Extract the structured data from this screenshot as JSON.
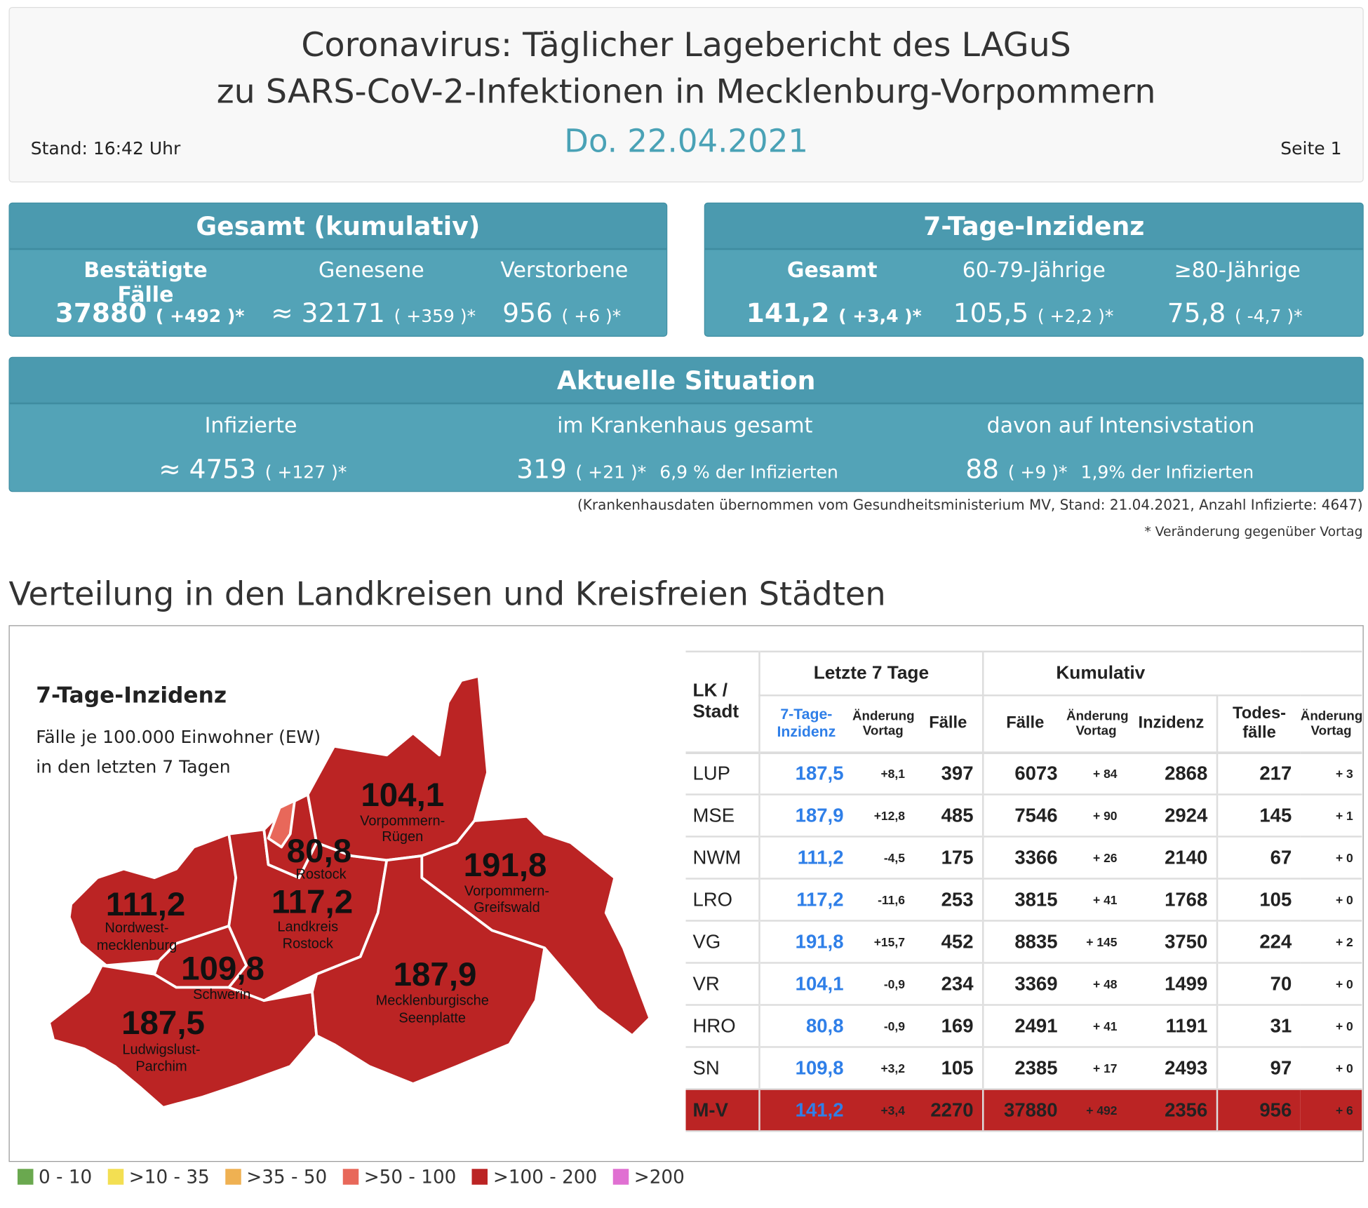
{
  "header": {
    "title_line1": "Coronavirus: Täglicher Lagebericht des LAGuS",
    "title_line2": "zu SARS-CoV-2-Infektionen in Mecklenburg-Vorpommern",
    "stand": "Stand: 16:42 Uhr",
    "date": "Do. 22.04.2021",
    "page": "Seite 1"
  },
  "gesamt": {
    "title": "Gesamt (kumulativ)",
    "items": [
      {
        "label": "Bestätigte Fälle",
        "value": "37880",
        "change": "( +492 )*"
      },
      {
        "label": "Genesene",
        "value": "≈ 32171",
        "change": "( +359 )*"
      },
      {
        "label": "Verstorbene",
        "value": "956",
        "change": "( +6 )*"
      }
    ]
  },
  "inzidenz": {
    "title": "7-Tage-Inzidenz",
    "items": [
      {
        "label": "Gesamt",
        "value": "141,2",
        "change": "( +3,4 )*"
      },
      {
        "label": "60-79-Jährige",
        "value": "105,5",
        "change": "( +2,2 )*"
      },
      {
        "label": "≥80-Jährige",
        "value": "75,8",
        "change": "( -4,7 )*"
      }
    ]
  },
  "aktuell": {
    "title": "Aktuelle Situation",
    "items": [
      {
        "label": "Infizierte",
        "value": "≈ 4753",
        "change": "( +127 )*",
        "extra": ""
      },
      {
        "label": "im Krankenhaus gesamt",
        "value": "319",
        "change": "( +21 )*",
        "extra": "6,9 % der Infizierten"
      },
      {
        "label": "davon auf Intensivstation",
        "value": "88",
        "change": "( +9 )*",
        "extra": "1,9% der Infizierten"
      }
    ]
  },
  "notes": {
    "hospital": "(Krankenhausdaten übernommen vom Gesundheitsministerium MV, Stand: 21.04.2021, Anzahl Infizierte: 4647)",
    "asterisk": "* Veränderung gegenüber Vortag"
  },
  "section_title": "Verteilung in den Landkreisen und Kreisfreien Städten",
  "map": {
    "title": "7-Tage-Inzidenz",
    "subtitle1": "Fälle je 100.000 Einwohner (EW)",
    "subtitle2": "in den letzten 7 Tagen",
    "regions": [
      {
        "value": "104,1",
        "name1": "Vorpommern-",
        "name2": "Rügen"
      },
      {
        "value": "80,8",
        "name1": "Rostock",
        "name2": ""
      },
      {
        "value": "117,2",
        "name1": "Landkreis",
        "name2": "Rostock"
      },
      {
        "value": "191,8",
        "name1": "Vorpommern-",
        "name2": "Greifswald"
      },
      {
        "value": "111,2",
        "name1": "Nordwest-",
        "name2": "mecklenburg"
      },
      {
        "value": "109,8",
        "name1": "Schwerin",
        "name2": ""
      },
      {
        "value": "187,9",
        "name1": "Mecklenburgische",
        "name2": "Seenplatte"
      },
      {
        "value": "187,5",
        "name1": "Ludwigslust-",
        "name2": "Parchim"
      }
    ],
    "colors": {
      "fill": "#bb2424",
      "rostock_patch": "#e8685a"
    }
  },
  "table": {
    "group_headers": [
      "Letzte 7 Tage",
      "Kumulativ"
    ],
    "lk_header": "LK / Stadt",
    "sub_headers": {
      "inz": "7-Tage-Inzidenz",
      "chg": "Änderung Vortag",
      "faelle": "Fälle",
      "kfaelle": "Fälle",
      "kchg": "Änderung Vortag",
      "kinz": "Inzidenz",
      "tod": "Todes-fälle",
      "tchg": "Änderung Vortag"
    },
    "rows": [
      [
        "LUP",
        "187,5",
        "+8,1",
        "397",
        "6073",
        "+ 84",
        "2868",
        "217",
        "+ 3"
      ],
      [
        "MSE",
        "187,9",
        "+12,8",
        "485",
        "7546",
        "+ 90",
        "2924",
        "145",
        "+ 1"
      ],
      [
        "NWM",
        "111,2",
        "-4,5",
        "175",
        "3366",
        "+ 26",
        "2140",
        "67",
        "+ 0"
      ],
      [
        "LRO",
        "117,2",
        "-11,6",
        "253",
        "3815",
        "+ 41",
        "1768",
        "105",
        "+ 0"
      ],
      [
        "VG",
        "191,8",
        "+15,7",
        "452",
        "8835",
        "+ 145",
        "3750",
        "224",
        "+ 2"
      ],
      [
        "VR",
        "104,1",
        "-0,9",
        "234",
        "3369",
        "+ 48",
        "1499",
        "70",
        "+ 0"
      ],
      [
        "HRO",
        "80,8",
        "-0,9",
        "169",
        "2491",
        "+ 41",
        "1191",
        "31",
        "+ 0"
      ],
      [
        "SN",
        "109,8",
        "+3,2",
        "105",
        "2385",
        "+ 17",
        "2493",
        "97",
        "+ 0"
      ],
      [
        "M-V",
        "141,2",
        "+3,4",
        "2270",
        "37880",
        "+ 492",
        "2356",
        "956",
        "+ 6"
      ]
    ]
  },
  "legend": [
    {
      "label": "0 - 10",
      "color": "#6aa84f"
    },
    {
      "label": ">10 - 35",
      "color": "#f3df52"
    },
    {
      "label": ">35 - 50",
      "color": "#efb152"
    },
    {
      "label": ">50 - 100",
      "color": "#e8685a"
    },
    {
      "label": ">100 - 200",
      "color": "#bb2424"
    },
    {
      "label": ">200",
      "color": "#e070d2"
    }
  ]
}
